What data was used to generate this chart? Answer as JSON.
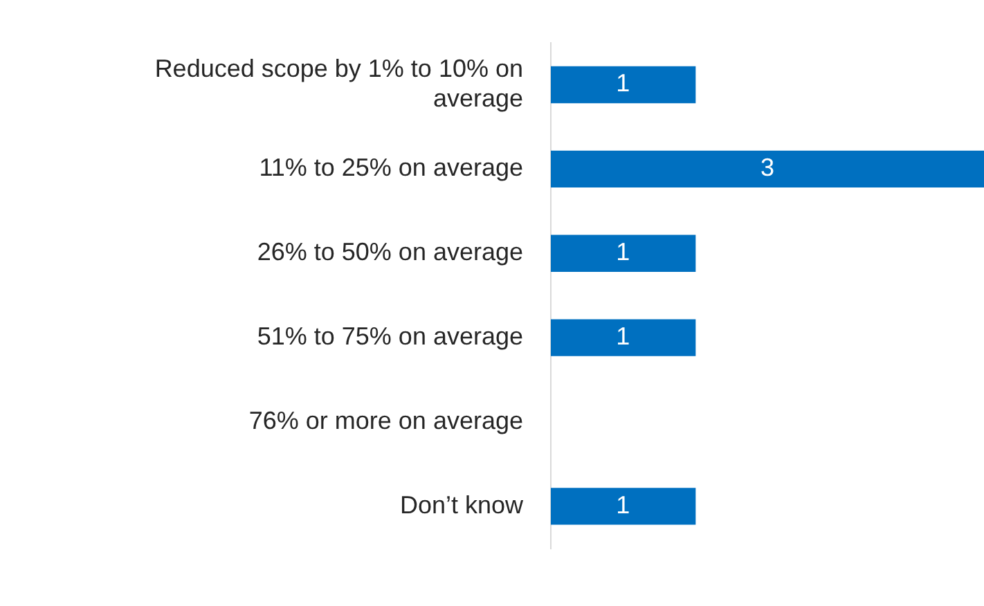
{
  "chart_data": {
    "type": "bar",
    "orientation": "horizontal",
    "categories": [
      "Reduced scope by 1% to 10% on average",
      "11% to 25% on average",
      "26% to 50% on average",
      "51% to 75% on average",
      "76% or more on average",
      "Don’t know"
    ],
    "values": [
      1,
      3,
      1,
      1,
      null,
      1
    ],
    "color": "#0070c0",
    "data_labels": true
  }
}
